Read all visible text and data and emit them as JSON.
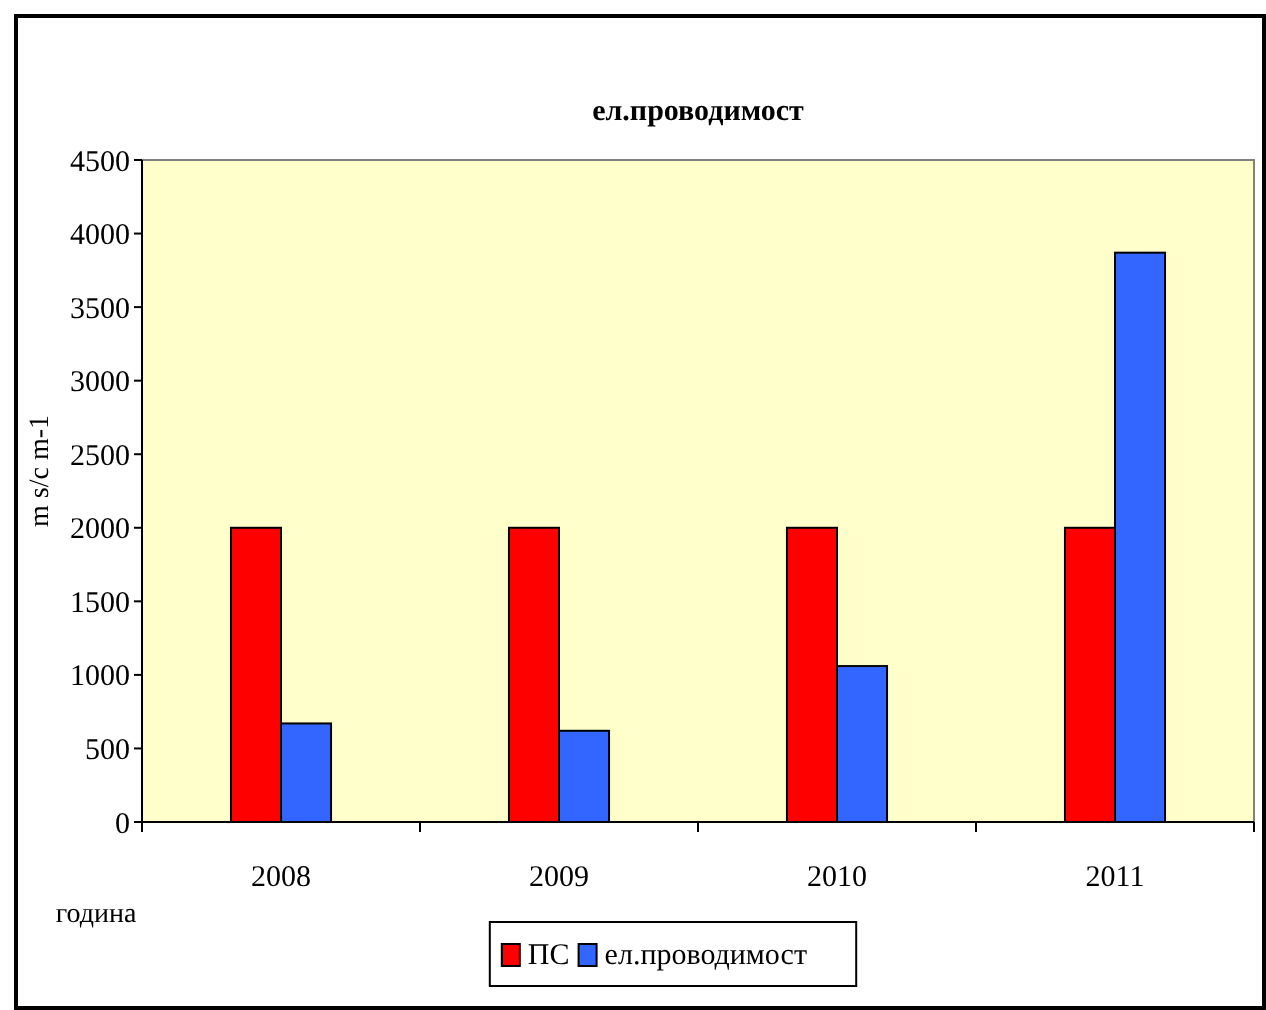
{
  "chart_data": {
    "type": "bar",
    "title": "ел.проводимост",
    "xlabel": "година",
    "ylabel": "m s/c m-1",
    "categories": [
      "2008",
      "2009",
      "2010",
      "2011"
    ],
    "series": [
      {
        "name": "ПС",
        "color": "#ff0000",
        "values": [
          2000,
          2000,
          2000,
          2000
        ]
      },
      {
        "name": "ел.проводимост",
        "color": "#3366ff",
        "values": [
          670,
          620,
          1060,
          3870
        ]
      }
    ],
    "ylim": [
      0,
      4500
    ],
    "yticks": [
      0,
      500,
      1000,
      1500,
      2000,
      2500,
      3000,
      3500,
      4000,
      4500
    ],
    "grid": false,
    "legend": "bottom"
  }
}
